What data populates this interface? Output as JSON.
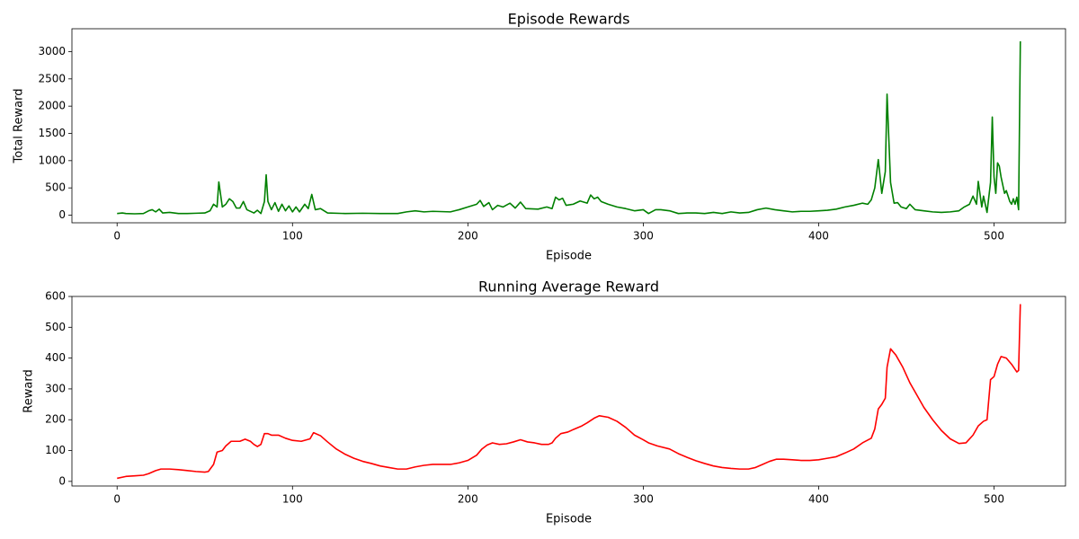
{
  "chart_data": [
    {
      "type": "line",
      "title": "Episode Rewards",
      "xlabel": "Episode",
      "ylabel": "Total Reward",
      "color": "#008000",
      "x": [
        0,
        3,
        5,
        10,
        15,
        18,
        20,
        22,
        24,
        26,
        30,
        35,
        40,
        45,
        50,
        53,
        55,
        57,
        58,
        60,
        62,
        64,
        66,
        68,
        70,
        72,
        74,
        78,
        80,
        82,
        84,
        85,
        86,
        88,
        90,
        92,
        94,
        96,
        98,
        100,
        102,
        104,
        107,
        109,
        111,
        113,
        116,
        120,
        130,
        140,
        150,
        160,
        165,
        170,
        175,
        180,
        190,
        195,
        200,
        205,
        207,
        209,
        212,
        214,
        217,
        220,
        224,
        227,
        230,
        233,
        240,
        245,
        248,
        250,
        252,
        254,
        256,
        260,
        264,
        268,
        270,
        272,
        274,
        276,
        280,
        285,
        290,
        295,
        300,
        303,
        307,
        310,
        315,
        320,
        325,
        330,
        335,
        340,
        345,
        350,
        355,
        360,
        365,
        370,
        375,
        380,
        385,
        390,
        395,
        400,
        405,
        410,
        415,
        420,
        425,
        428,
        430,
        432,
        434,
        436,
        438,
        439,
        441,
        443,
        445,
        447,
        450,
        452,
        455,
        460,
        465,
        470,
        475,
        480,
        483,
        486,
        488,
        490,
        491,
        493,
        494,
        496,
        498,
        499,
        500,
        501,
        502,
        503,
        504,
        506,
        507,
        509,
        510,
        511,
        512,
        513,
        514,
        515
      ],
      "values": [
        30,
        40,
        30,
        25,
        30,
        80,
        100,
        60,
        110,
        40,
        50,
        30,
        30,
        35,
        40,
        80,
        200,
        150,
        610,
        150,
        200,
        300,
        250,
        130,
        130,
        250,
        100,
        40,
        90,
        30,
        250,
        740,
        250,
        100,
        230,
        70,
        200,
        80,
        170,
        60,
        150,
        60,
        200,
        120,
        380,
        100,
        120,
        40,
        30,
        35,
        30,
        30,
        60,
        80,
        60,
        70,
        60,
        100,
        150,
        200,
        270,
        160,
        230,
        100,
        180,
        150,
        220,
        130,
        240,
        120,
        110,
        150,
        120,
        330,
        280,
        310,
        180,
        200,
        260,
        220,
        370,
        300,
        330,
        250,
        200,
        150,
        120,
        80,
        100,
        30,
        100,
        100,
        80,
        30,
        40,
        40,
        30,
        50,
        30,
        60,
        40,
        50,
        100,
        130,
        100,
        80,
        60,
        70,
        70,
        80,
        90,
        110,
        150,
        180,
        220,
        200,
        280,
        500,
        1020,
        400,
        800,
        2220,
        600,
        220,
        230,
        150,
        120,
        200,
        100,
        80,
        60,
        50,
        60,
        80,
        150,
        200,
        350,
        200,
        620,
        150,
        350,
        50,
        600,
        1800,
        700,
        400,
        960,
        900,
        700,
        400,
        450,
        250,
        200,
        300,
        200,
        330,
        100,
        3190
      ],
      "xlim": [
        -25.75,
        540.75
      ],
      "xticks": [
        0,
        100,
        200,
        300,
        400,
        500
      ],
      "ylim": [
        -140,
        3420
      ],
      "yticks": [
        0,
        500,
        1000,
        1500,
        2000,
        2500,
        3000
      ]
    },
    {
      "type": "line",
      "title": "Running Average Reward",
      "xlabel": "Episode",
      "ylabel": "Reward",
      "color": "#ff0000",
      "x": [
        0,
        5,
        10,
        15,
        18,
        22,
        25,
        30,
        35,
        40,
        45,
        50,
        52,
        55,
        57,
        60,
        62,
        65,
        70,
        73,
        76,
        78,
        80,
        82,
        84,
        86,
        88,
        92,
        96,
        100,
        105,
        110,
        112,
        116,
        120,
        125,
        130,
        135,
        140,
        145,
        150,
        155,
        160,
        165,
        170,
        175,
        180,
        185,
        190,
        195,
        200,
        205,
        208,
        211,
        214,
        218,
        222,
        226,
        230,
        234,
        238,
        242,
        246,
        248,
        250,
        253,
        257,
        260,
        265,
        268,
        272,
        275,
        280,
        285,
        290,
        295,
        300,
        303,
        308,
        315,
        320,
        325,
        330,
        335,
        340,
        345,
        350,
        355,
        360,
        364,
        368,
        372,
        376,
        380,
        385,
        390,
        395,
        400,
        405,
        410,
        415,
        420,
        425,
        430,
        432,
        434,
        436,
        438,
        439,
        441,
        444,
        448,
        452,
        456,
        460,
        465,
        470,
        475,
        480,
        484,
        488,
        491,
        494,
        496,
        498,
        500,
        502,
        504,
        507,
        510,
        513,
        514,
        515
      ],
      "values": [
        10,
        16,
        18,
        20,
        25,
        35,
        40,
        40,
        38,
        35,
        32,
        30,
        32,
        55,
        95,
        100,
        115,
        130,
        130,
        137,
        130,
        120,
        113,
        120,
        155,
        155,
        150,
        150,
        140,
        133,
        130,
        138,
        158,
        148,
        128,
        105,
        88,
        75,
        65,
        58,
        50,
        45,
        40,
        40,
        47,
        52,
        55,
        55,
        55,
        60,
        68,
        85,
        105,
        118,
        125,
        120,
        122,
        128,
        135,
        128,
        125,
        120,
        120,
        125,
        140,
        155,
        160,
        168,
        180,
        190,
        205,
        213,
        208,
        195,
        175,
        150,
        135,
        125,
        115,
        105,
        90,
        78,
        67,
        58,
        50,
        45,
        42,
        40,
        40,
        45,
        55,
        65,
        72,
        72,
        70,
        68,
        68,
        70,
        75,
        80,
        92,
        105,
        125,
        140,
        170,
        235,
        250,
        270,
        370,
        430,
        410,
        370,
        320,
        280,
        240,
        200,
        165,
        138,
        123,
        125,
        150,
        180,
        195,
        200,
        330,
        340,
        380,
        405,
        400,
        380,
        355,
        360,
        575
      ],
      "xlim": [
        -25.75,
        540.75
      ],
      "xticks": [
        0,
        100,
        200,
        300,
        400,
        500
      ],
      "ylim": [
        -15,
        600
      ],
      "yticks": [
        0,
        100,
        200,
        300,
        400,
        500,
        600
      ]
    }
  ]
}
